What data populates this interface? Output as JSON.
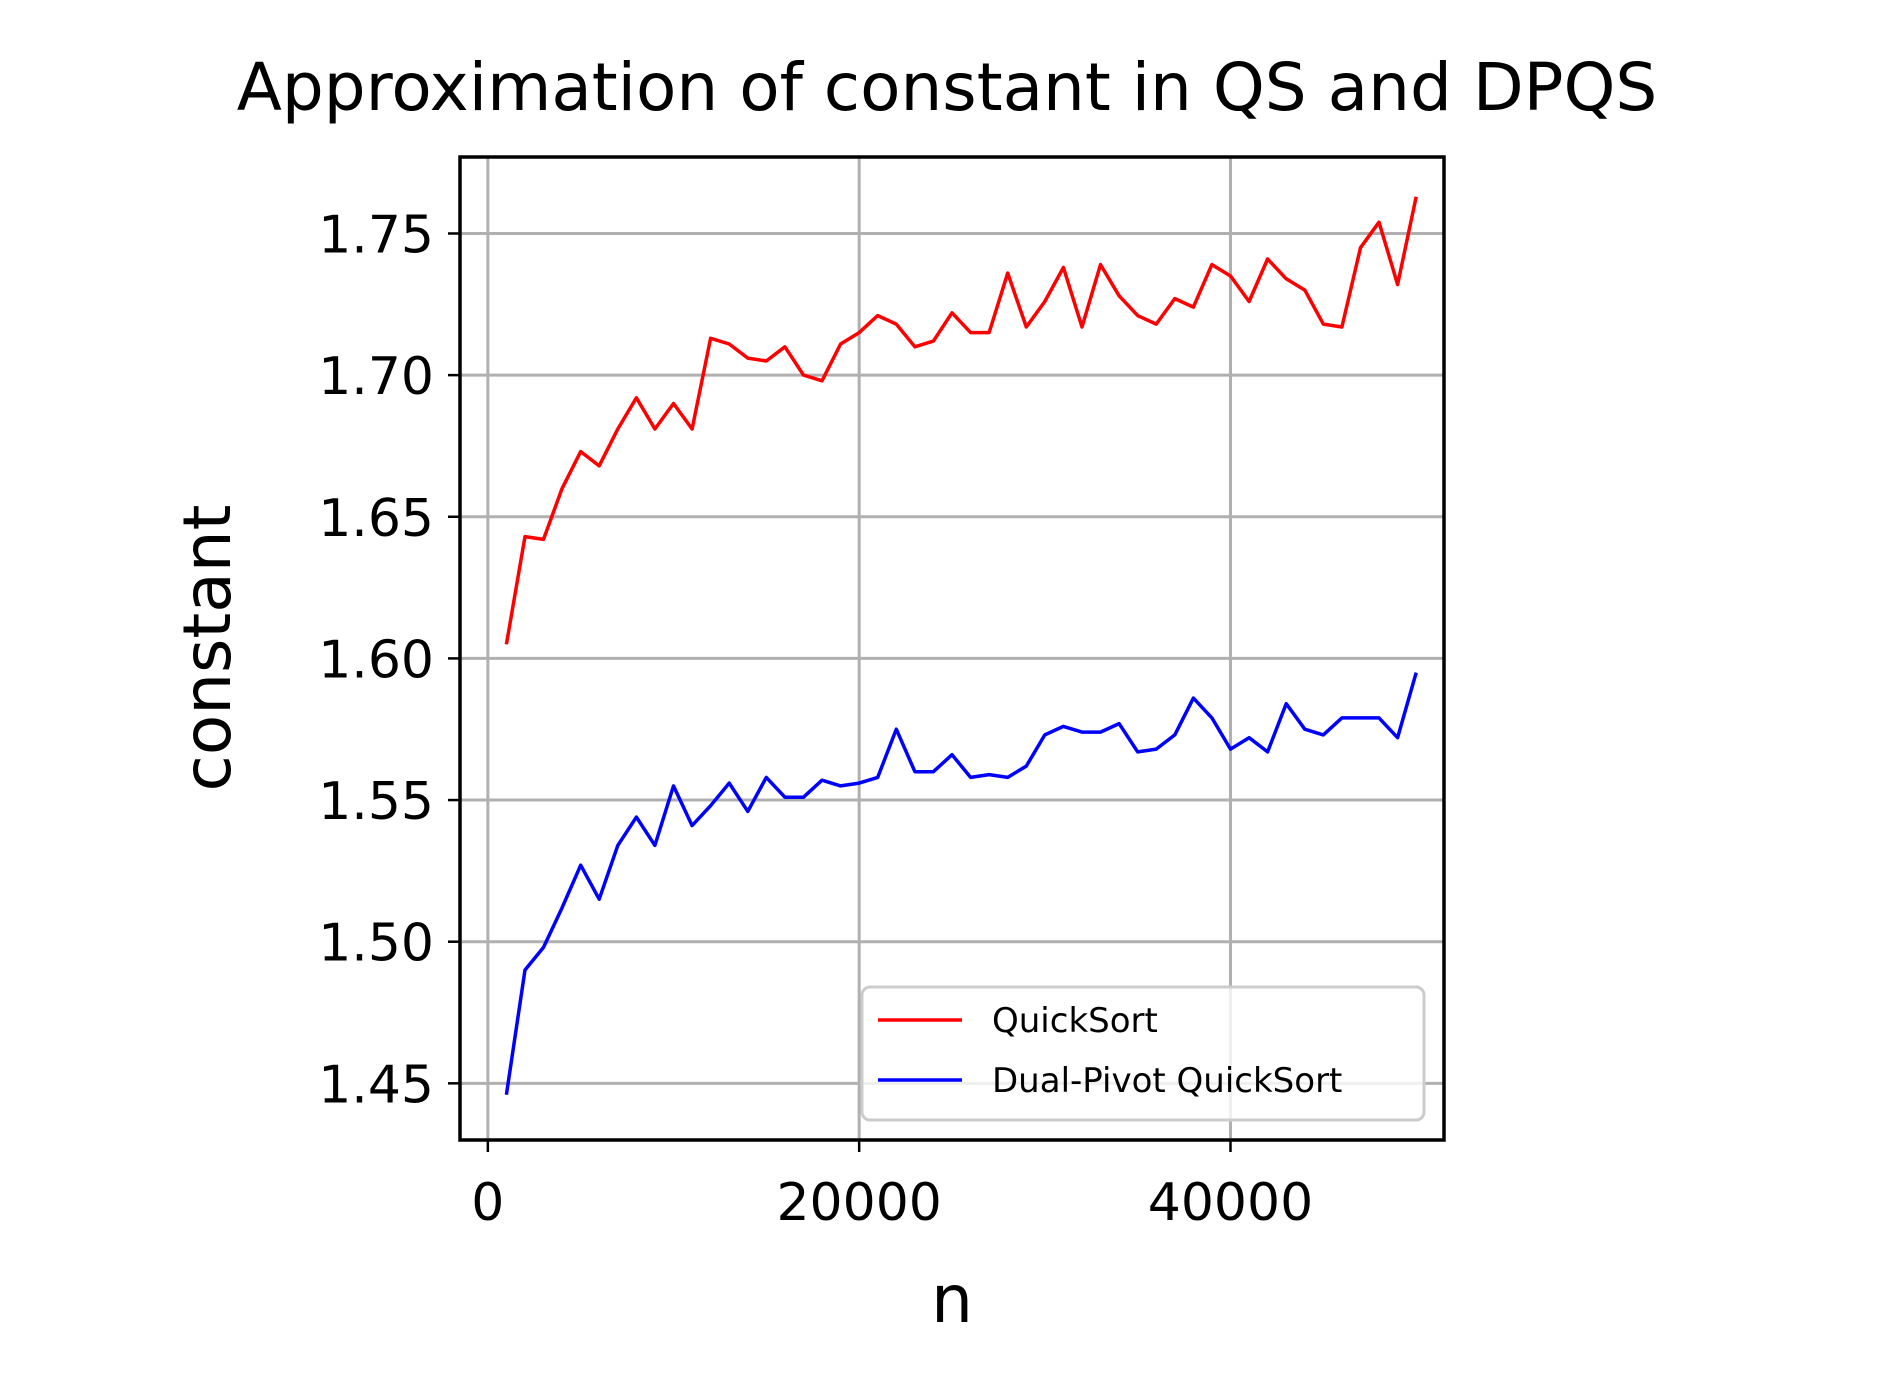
{
  "chart_data": {
    "type": "line",
    "title": "Approximation of constant in QS and DPQS",
    "xlabel": "n",
    "ylabel": "constant",
    "xlim": [
      -1500,
      51500
    ],
    "ylim": [
      1.43,
      1.777
    ],
    "xticks": [
      0,
      20000,
      40000
    ],
    "xtick_labels": [
      "0",
      "20000",
      "40000"
    ],
    "yticks": [
      1.45,
      1.5,
      1.55,
      1.6,
      1.65,
      1.7,
      1.75
    ],
    "ytick_labels": [
      "1.45",
      "1.50",
      "1.55",
      "1.60",
      "1.65",
      "1.70",
      "1.75"
    ],
    "grid": true,
    "legend_position": "lower-right",
    "x": [
      1000,
      2000,
      3000,
      4000,
      5000,
      6000,
      7000,
      8000,
      9000,
      10000,
      11000,
      12000,
      13000,
      14000,
      15000,
      16000,
      17000,
      18000,
      19000,
      20000,
      21000,
      22000,
      23000,
      24000,
      25000,
      26000,
      27000,
      28000,
      29000,
      30000,
      31000,
      32000,
      33000,
      34000,
      35000,
      36000,
      37000,
      38000,
      39000,
      40000,
      41000,
      42000,
      43000,
      44000,
      45000,
      46000,
      47000,
      48000,
      49000,
      50000
    ],
    "series": [
      {
        "name": "QuickSort",
        "color": "#ff0000",
        "values": [
          1.605,
          1.643,
          1.642,
          1.66,
          1.673,
          1.668,
          1.681,
          1.692,
          1.681,
          1.69,
          1.681,
          1.713,
          1.711,
          1.706,
          1.705,
          1.71,
          1.7,
          1.698,
          1.711,
          1.715,
          1.721,
          1.718,
          1.71,
          1.712,
          1.722,
          1.715,
          1.715,
          1.736,
          1.717,
          1.726,
          1.738,
          1.717,
          1.739,
          1.728,
          1.721,
          1.718,
          1.727,
          1.724,
          1.739,
          1.735,
          1.726,
          1.741,
          1.734,
          1.73,
          1.718,
          1.717,
          1.745,
          1.754,
          1.732,
          1.763
        ]
      },
      {
        "name": "Dual-Pivot QuickSort",
        "color": "#0000ff",
        "values": [
          1.446,
          1.49,
          1.498,
          1.512,
          1.527,
          1.515,
          1.534,
          1.544,
          1.534,
          1.555,
          1.541,
          1.548,
          1.556,
          1.546,
          1.558,
          1.551,
          1.551,
          1.557,
          1.555,
          1.556,
          1.558,
          1.575,
          1.56,
          1.56,
          1.566,
          1.558,
          1.559,
          1.558,
          1.562,
          1.573,
          1.576,
          1.574,
          1.574,
          1.577,
          1.567,
          1.568,
          1.573,
          1.586,
          1.579,
          1.568,
          1.572,
          1.567,
          1.584,
          1.575,
          1.573,
          1.579,
          1.579,
          1.579,
          1.572,
          1.595
        ]
      }
    ]
  }
}
